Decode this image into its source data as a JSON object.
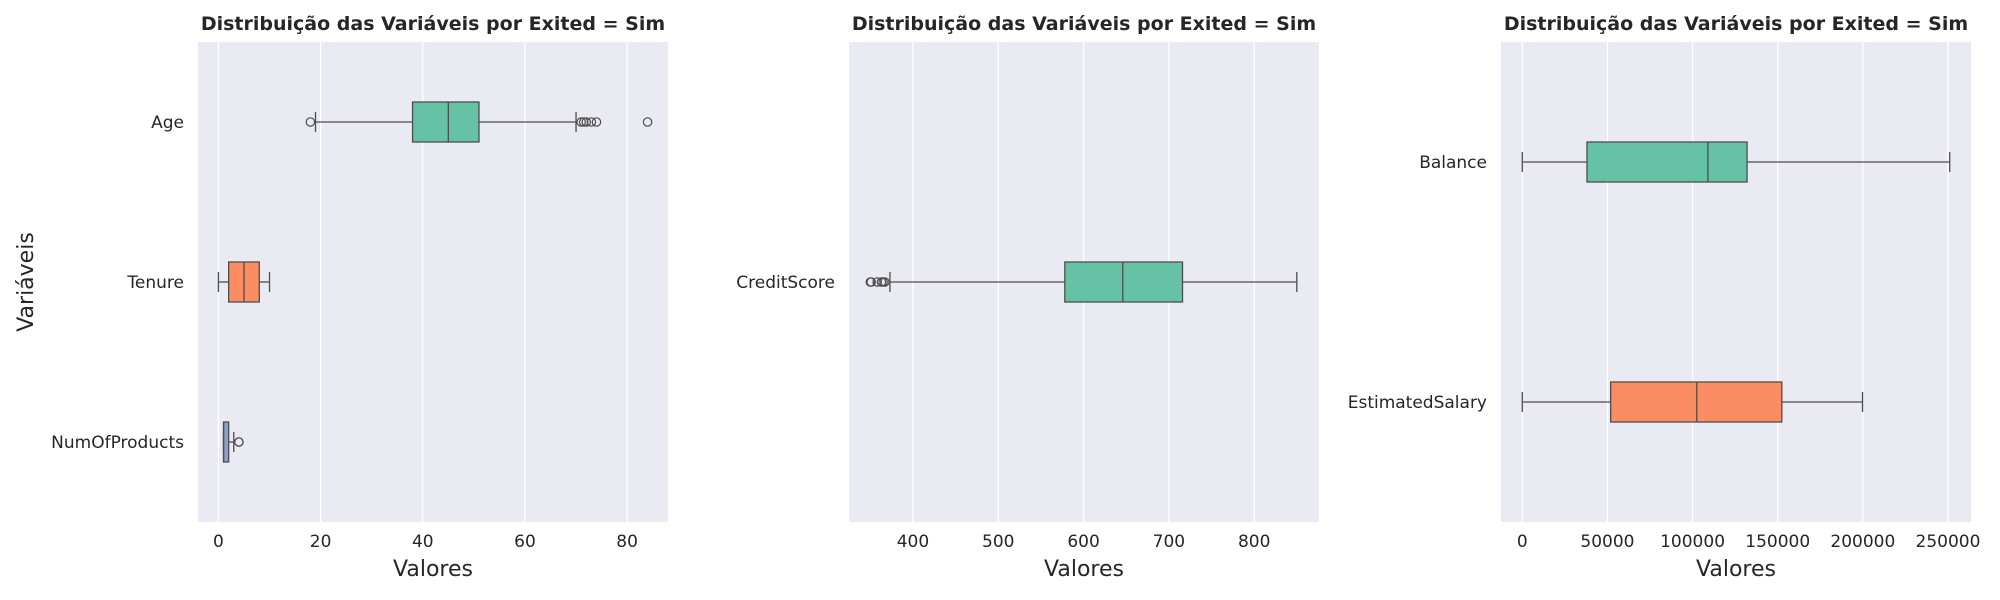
{
  "chart_data": [
    {
      "type": "boxplot",
      "title": "Distribuição das Variáveis por Exited = Sim",
      "xlabel": "Valores",
      "ylabel": "Variáveis",
      "xlim": [
        -4,
        88
      ],
      "xticks": [
        0,
        20,
        40,
        60,
        80
      ],
      "grid": true,
      "categories": [
        "Age",
        "Tenure",
        "NumOfProducts"
      ],
      "boxes": [
        {
          "label": "Age",
          "color": "#66c2a5",
          "whisker_low": 19,
          "q1": 38,
          "median": 45,
          "q3": 51,
          "whisker_high": 70,
          "outliers": [
            18,
            71,
            71.5,
            72,
            73,
            74,
            84
          ]
        },
        {
          "label": "Tenure",
          "color": "#fc8d62",
          "whisker_low": 0,
          "q1": 2,
          "median": 5,
          "q3": 8,
          "whisker_high": 10,
          "outliers": []
        },
        {
          "label": "NumOfProducts",
          "color": "#8da0cb",
          "whisker_low": 1,
          "q1": 1,
          "median": 1,
          "q3": 2,
          "whisker_high": 3,
          "outliers": [
            4,
            4
          ]
        }
      ]
    },
    {
      "type": "boxplot",
      "title": "Distribuição das Variáveis por Exited = Sim",
      "xlabel": "Valores",
      "ylabel": "",
      "xlim": [
        325,
        876
      ],
      "xticks": [
        400,
        500,
        600,
        700,
        800
      ],
      "grid": true,
      "categories": [
        "CreditScore"
      ],
      "boxes": [
        {
          "label": "CreditScore",
          "color": "#66c2a5",
          "whisker_low": 373,
          "q1": 578,
          "median": 646,
          "q3": 716,
          "whisker_high": 850,
          "outliers": [
            350,
            351,
            358,
            363,
            365,
            367
          ]
        }
      ]
    },
    {
      "type": "boxplot",
      "title": "Distribuição das Variáveis por Exited = Sim",
      "xlabel": "Valores",
      "ylabel": "",
      "xlim": [
        -12500,
        263500
      ],
      "xticks": [
        0,
        50000,
        100000,
        150000,
        200000,
        250000
      ],
      "grid": true,
      "categories": [
        "Balance",
        "EstimatedSalary"
      ],
      "boxes": [
        {
          "label": "Balance",
          "color": "#66c2a5",
          "whisker_low": 0,
          "q1": 38000,
          "median": 109000,
          "q3": 132000,
          "whisker_high": 251000,
          "outliers": []
        },
        {
          "label": "EstimatedSalary",
          "color": "#fc8d62",
          "whisker_low": 0,
          "q1": 51900,
          "median": 102500,
          "q3": 152400,
          "whisker_high": 199800,
          "outliers": []
        }
      ]
    }
  ]
}
